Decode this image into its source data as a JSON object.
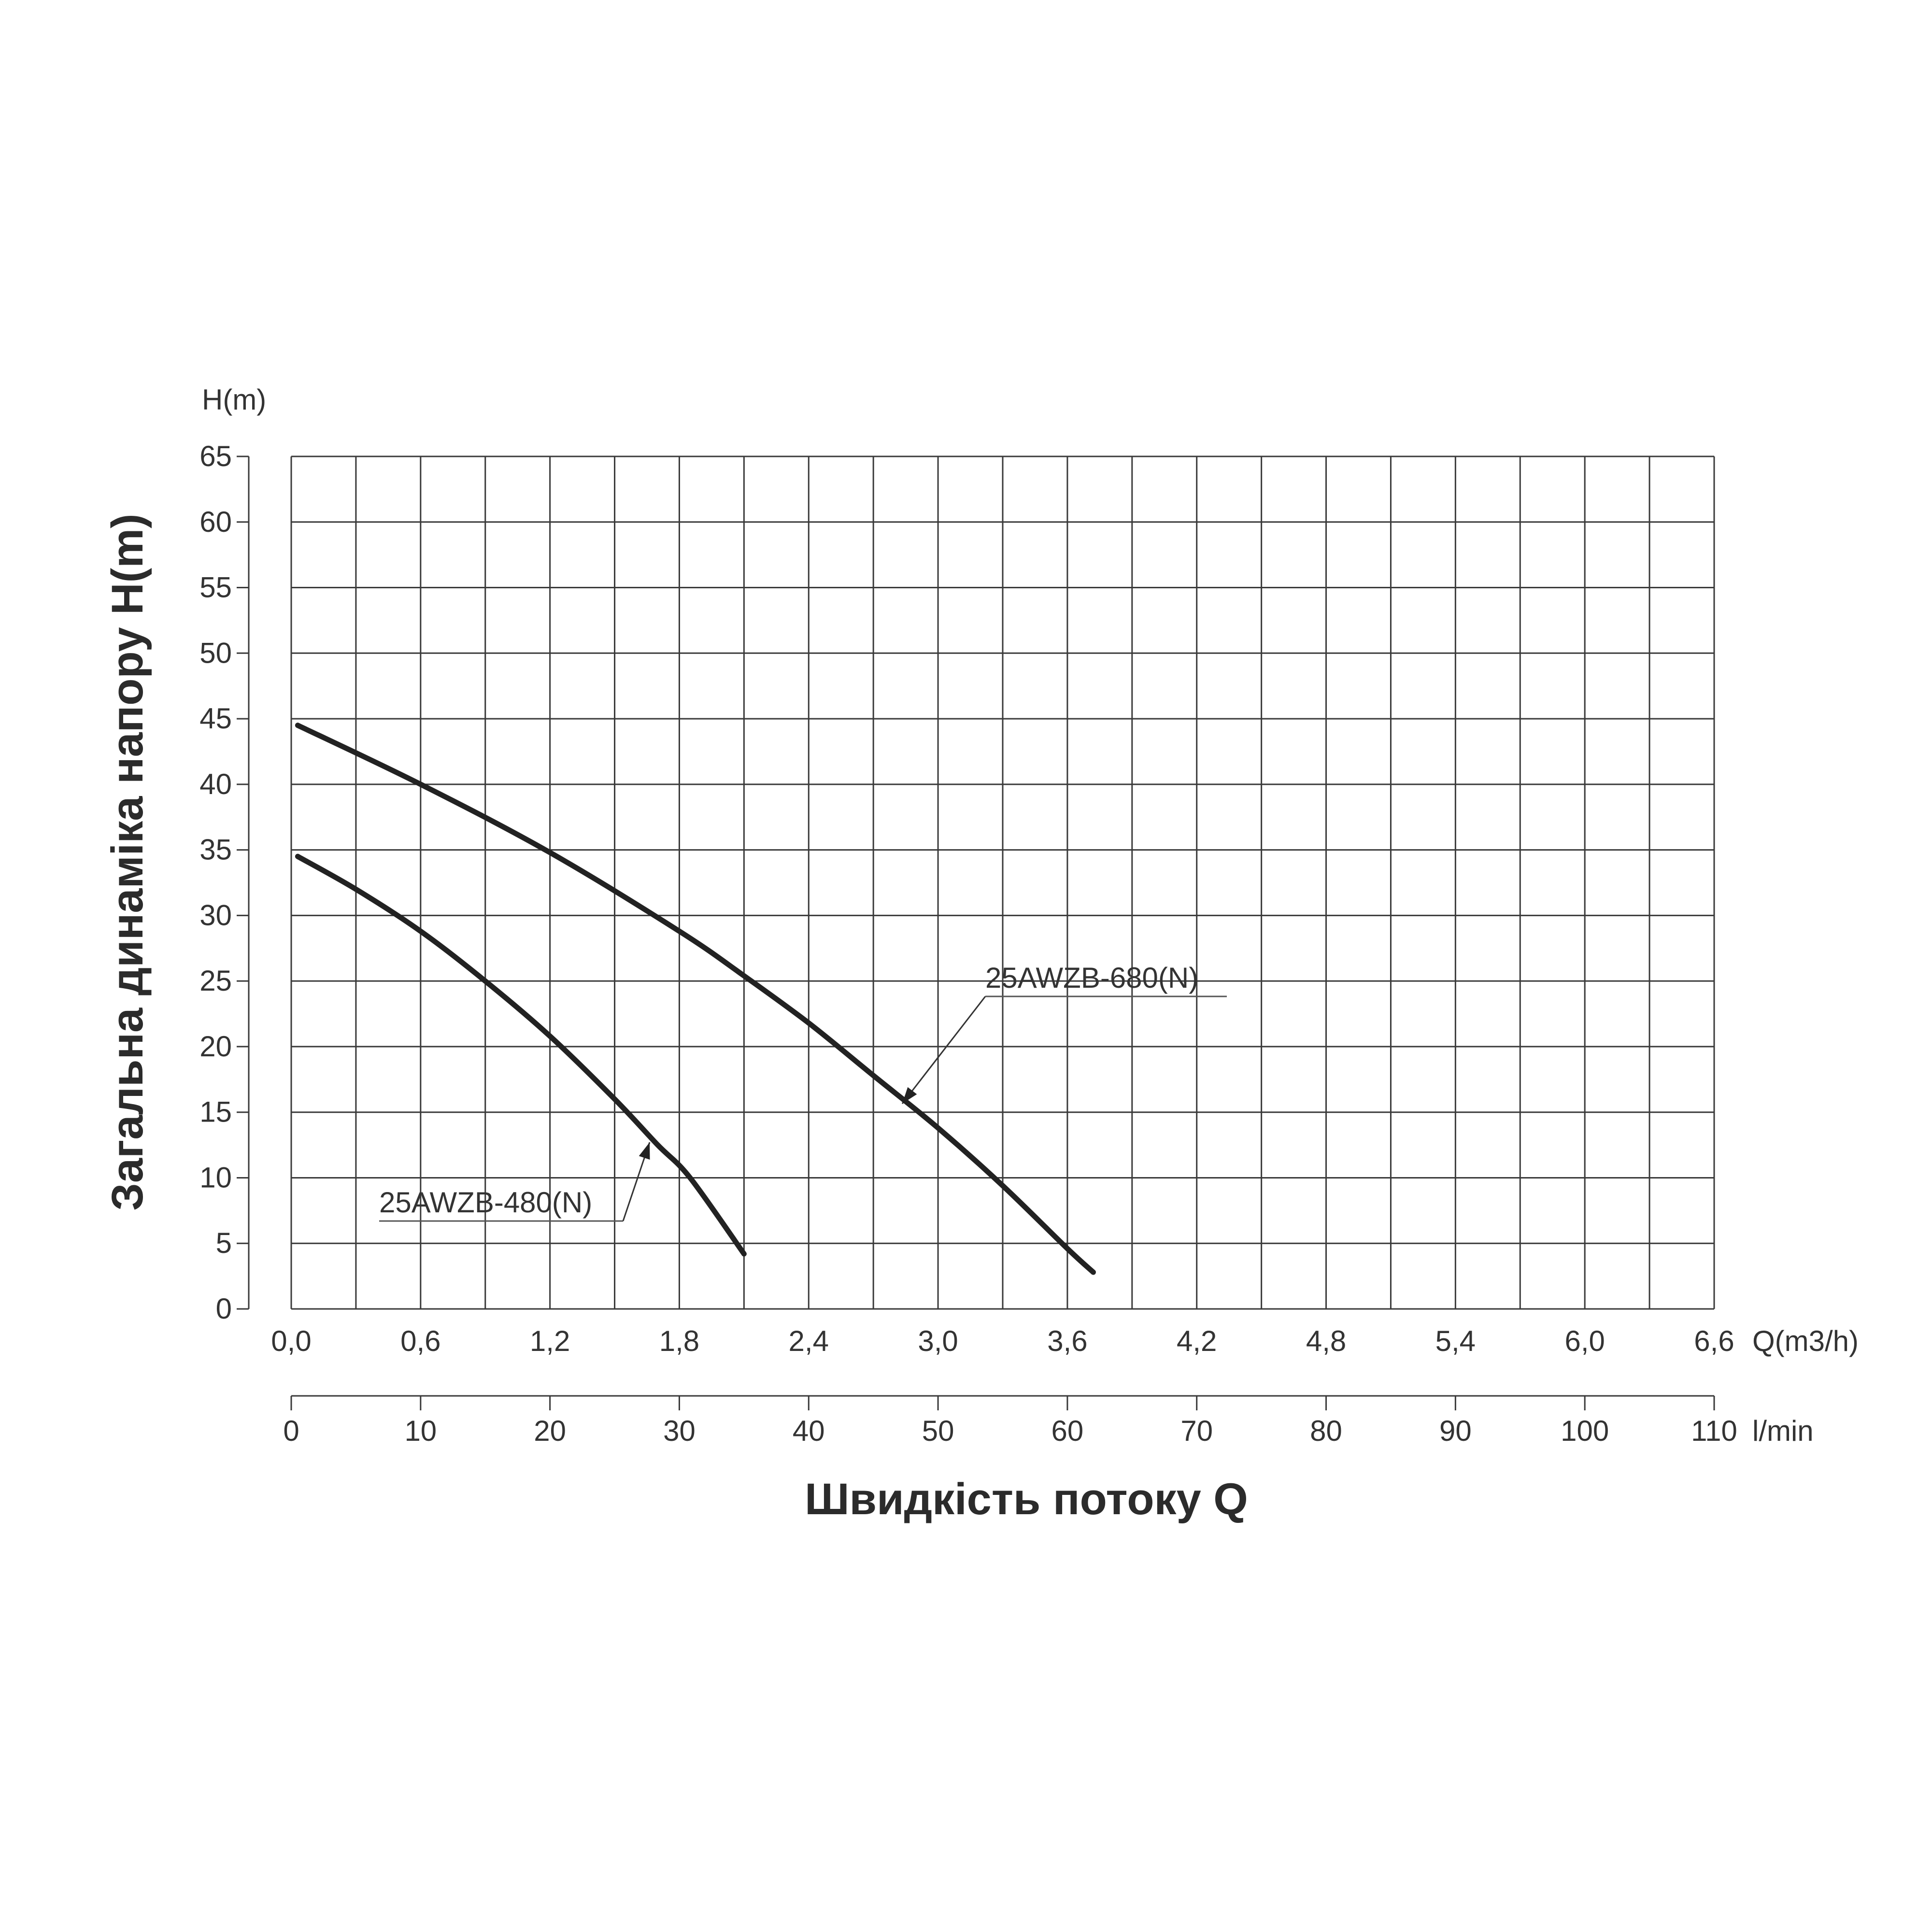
{
  "chart_data": {
    "type": "line",
    "xlabel": "Швидкість потоку Q",
    "ylabel": "Загальна динаміка напору H(m)",
    "y_unit_label": "H(m)",
    "x_unit_label": "Q(m3/h)",
    "x2_unit_label": "l/min",
    "x_ticks": [
      "0,0",
      "0,6",
      "1,2",
      "1,8",
      "2,4",
      "3,0",
      "3,6",
      "4,2",
      "4,8",
      "5,4",
      "6,0",
      "6,6"
    ],
    "x2_ticks": [
      "0",
      "10",
      "20",
      "30",
      "40",
      "50",
      "60",
      "70",
      "80",
      "90",
      "100",
      "110"
    ],
    "y_ticks": [
      "0",
      "5",
      "10",
      "15",
      "20",
      "25",
      "30",
      "35",
      "40",
      "45",
      "50",
      "55",
      "60",
      "65"
    ],
    "xlim": [
      0,
      6.6
    ],
    "ylim": [
      0,
      65
    ],
    "grid": true,
    "line_color": "#222222",
    "series": [
      {
        "name": "25AWZB-480(N)",
        "x": [
          0.03,
          0.3,
          0.6,
          0.9,
          1.2,
          1.5,
          1.7,
          1.85,
          2.1
        ],
        "y": [
          34.5,
          32.0,
          28.8,
          25.0,
          20.8,
          16.0,
          12.5,
          10.0,
          4.2
        ]
      },
      {
        "name": "25AWZB-680(N)",
        "x": [
          0.03,
          0.6,
          1.2,
          1.8,
          2.1,
          2.4,
          2.7,
          3.0,
          3.3,
          3.6,
          3.72
        ],
        "y": [
          44.5,
          40.0,
          34.8,
          28.8,
          25.4,
          21.8,
          17.8,
          13.8,
          9.4,
          4.6,
          2.8
        ]
      }
    ]
  }
}
